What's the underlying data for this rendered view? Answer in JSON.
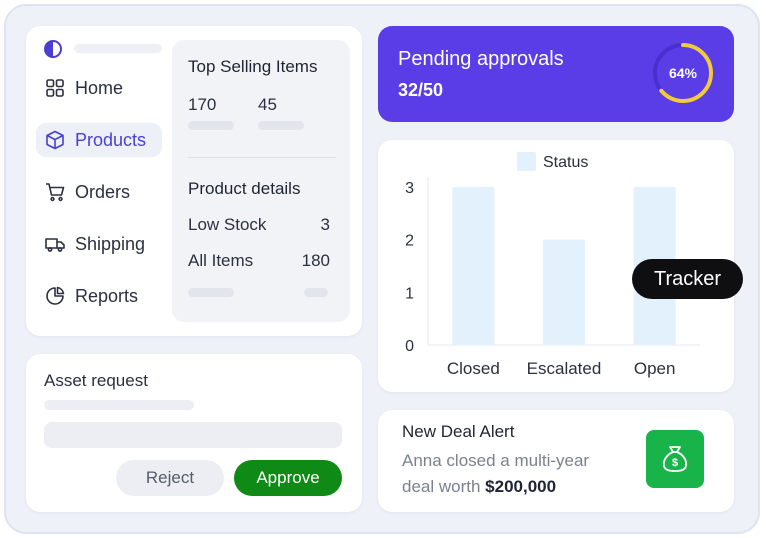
{
  "nav": {
    "items": [
      {
        "label": "Home",
        "icon": "grid-icon"
      },
      {
        "label": "Products",
        "icon": "box-icon",
        "active": true
      },
      {
        "label": "Orders",
        "icon": "cart-icon"
      },
      {
        "label": "Shipping",
        "icon": "truck-icon"
      },
      {
        "label": "Reports",
        "icon": "pie-chart-icon"
      }
    ]
  },
  "top_selling": {
    "title": "Top Selling Items",
    "values": [
      "170",
      "45"
    ]
  },
  "product_details": {
    "title": "Product details",
    "rows": [
      {
        "label": "Low Stock",
        "value": "3"
      },
      {
        "label": "All Items",
        "value": "180"
      }
    ]
  },
  "asset_request": {
    "title": "Asset request",
    "reject_label": "Reject",
    "approve_label": "Approve"
  },
  "pending": {
    "title": "Pending approvals",
    "count": "32/50",
    "percent_label": "64%",
    "percent": 0.64
  },
  "chart_data": {
    "type": "bar",
    "categories": [
      "Closed",
      "Escalated",
      "Open"
    ],
    "series": [
      {
        "name": "Status",
        "values": [
          3,
          2,
          3
        ]
      }
    ],
    "yticks": [
      "0",
      "1",
      "2",
      "3"
    ],
    "ylim": [
      0,
      3.2
    ],
    "legend": "top-center",
    "grid": false
  },
  "tracker": {
    "label": "Tracker"
  },
  "deal": {
    "title": "New Deal Alert",
    "body": "Anna closed a multi-year deal worth ",
    "amount": "$200,000",
    "icon": "money-bag-icon"
  },
  "colors": {
    "accent": "#5a3de6",
    "approve": "#108a16",
    "deal_icon": "#18b44a",
    "progress": "#f2cb3a",
    "bar_fill": "#e3f1fd"
  }
}
